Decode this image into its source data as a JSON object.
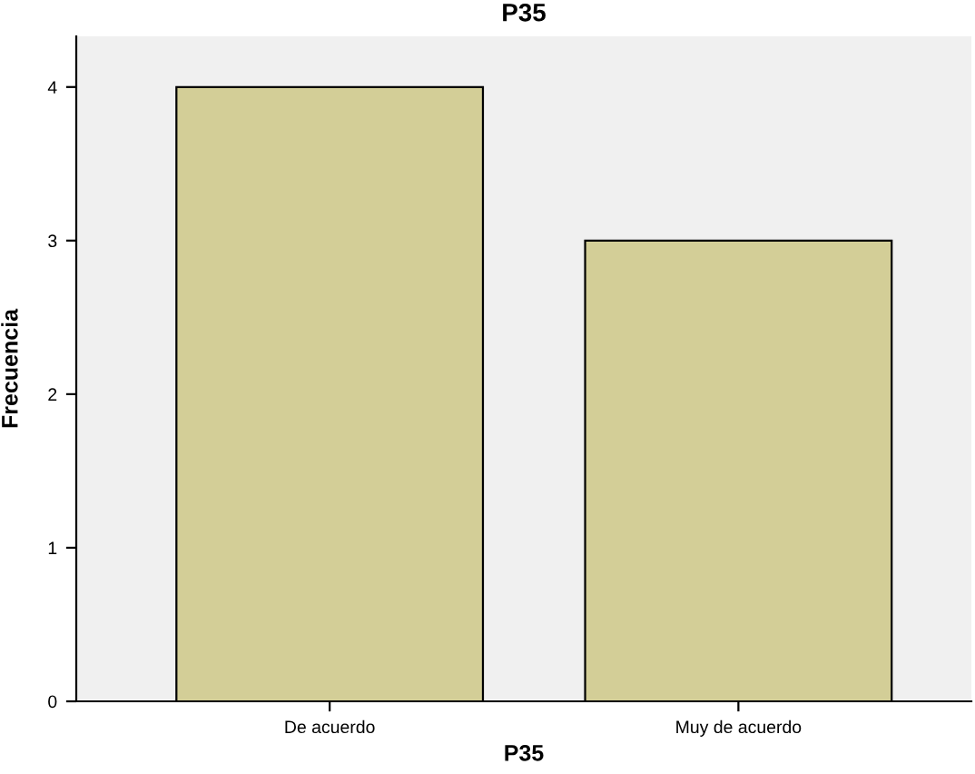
{
  "chart_data": {
    "type": "bar",
    "title": "P35",
    "xlabel": "P35",
    "ylabel": "Frecuencia",
    "categories": [
      "De acuerdo",
      "Muy de acuerdo"
    ],
    "values": [
      4,
      3
    ],
    "color": "#d3ce97",
    "ylim": [
      0,
      4.33
    ],
    "yticks": [
      0,
      1,
      2,
      3,
      4
    ],
    "grid": false
  }
}
